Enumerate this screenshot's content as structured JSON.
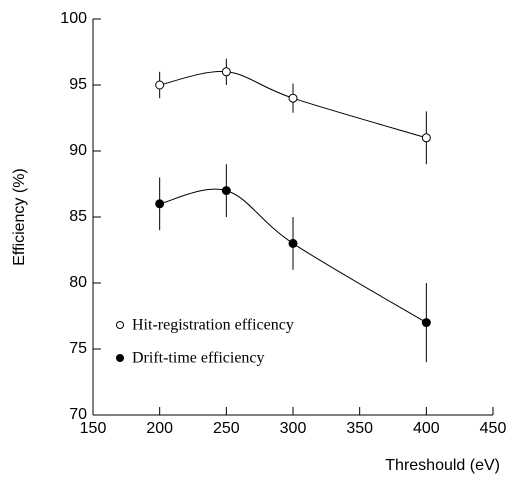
{
  "chart_data": {
    "type": "line",
    "xlabel": "Threshould (eV)",
    "ylabel": "Efficiency (%)",
    "x": [
      200,
      250,
      300,
      400
    ],
    "series": [
      {
        "name": "Hit-registration efficency",
        "color": "#000000",
        "marker": "open",
        "values": [
          95,
          96,
          94,
          91
        ],
        "errors": [
          1,
          1,
          1.1,
          2
        ]
      },
      {
        "name": "Drift-time efficiency",
        "color": "#000000",
        "marker": "filled",
        "values": [
          86,
          87,
          83,
          77
        ],
        "errors": [
          2,
          2,
          2,
          3
        ]
      }
    ],
    "xlim": [
      150,
      450
    ],
    "xticks": [
      150,
      200,
      250,
      300,
      350,
      400,
      450
    ],
    "ylim": [
      70,
      100
    ],
    "yticks": [
      70,
      75,
      80,
      85,
      90,
      95,
      100
    ],
    "grid": false,
    "legend": "lower left"
  }
}
